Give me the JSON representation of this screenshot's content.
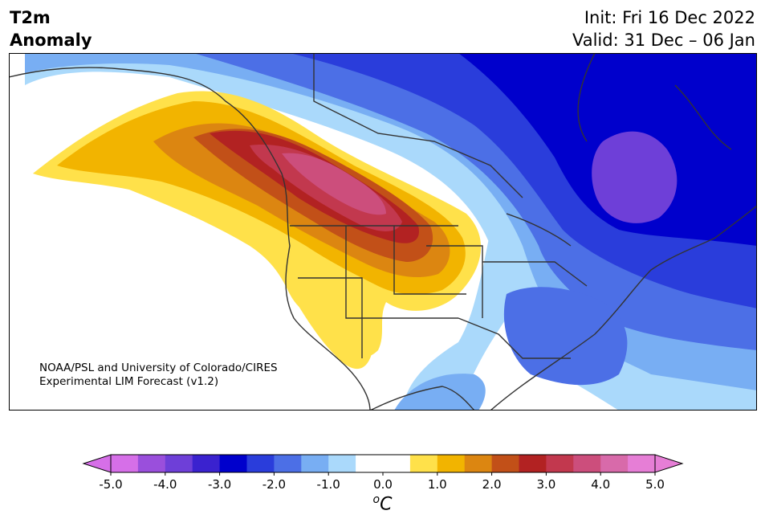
{
  "header": {
    "title_line1": "T2m",
    "title_line2": "Anomaly",
    "init": "Init: Fri 16 Dec 2022",
    "valid": "Valid: 31 Dec – 06 Jan"
  },
  "credit": {
    "line1": "NOAA/PSL and University of Colorado/CIRES",
    "line2": "Experimental LIM Forecast (v1.2)"
  },
  "colorbar": {
    "tick_labels": [
      "-5.0",
      "-4.0",
      "-3.0",
      "-2.0",
      "-1.0",
      "0.0",
      "1.0",
      "2.0",
      "3.0",
      "4.0",
      "5.0"
    ],
    "unit_sup": "o",
    "unit_main": "C",
    "colors": [
      "#d66fe8",
      "#9a4fdc",
      "#6e3fd8",
      "#3a22cf",
      "#0000cc",
      "#2a3ddb",
      "#4c6fe6",
      "#78aef3",
      "#aad9fb",
      "#ffffff",
      "#ffffff",
      "#ffe14a",
      "#f2b400",
      "#dc8611",
      "#c25018",
      "#b22222",
      "#c2384e",
      "#cc4e7c",
      "#d86aaa",
      "#e67ed6"
    ]
  },
  "map": {
    "legend_range_c": [
      -5.0,
      5.0
    ],
    "colors": {
      "land": "#ffffff",
      "ocean_cold": "#aad9fb",
      "coast": "#333333"
    }
  }
}
